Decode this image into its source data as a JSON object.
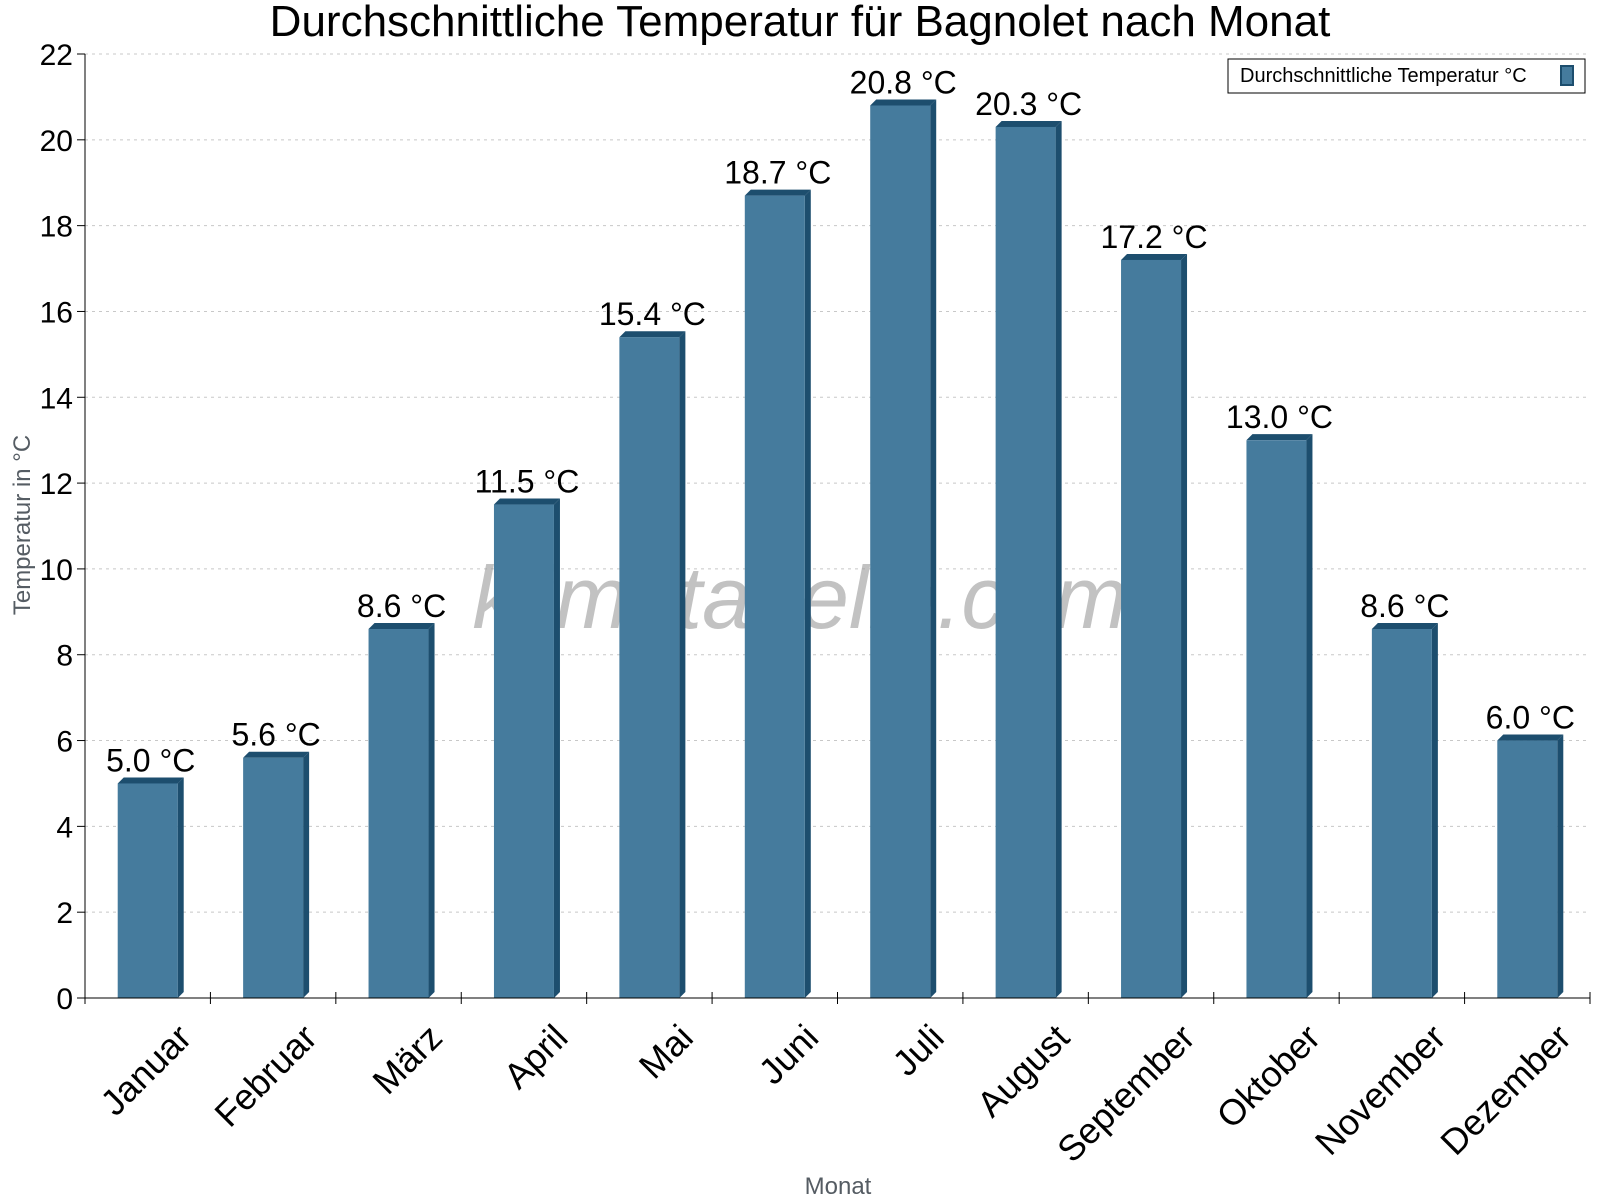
{
  "chart_data": {
    "type": "bar",
    "title": "Durchschnittliche Temperatur für Bagnolet nach Monat",
    "xlabel": "Monat",
    "ylabel": "Temperatur in °C",
    "categories": [
      "Januar",
      "Februar",
      "März",
      "April",
      "Mai",
      "Juni",
      "Juli",
      "August",
      "September",
      "Oktober",
      "November",
      "Dezember"
    ],
    "series": [
      {
        "name": "Durchschnittliche Temperatur °C",
        "values": [
          5.0,
          5.6,
          8.6,
          11.5,
          15.4,
          18.7,
          20.8,
          20.3,
          17.2,
          13.0,
          8.6,
          6.0
        ],
        "data_labels": [
          "5.0 °C",
          "5.6 °C",
          "8.6 °C",
          "11.5 °C",
          "15.4 °C",
          "18.7 °C",
          "20.8 °C",
          "20.3 °C",
          "17.2 °C",
          "13.0 °C",
          "8.6 °C",
          "6.0 °C"
        ],
        "color": "#457b9d",
        "edge_color": "#1d4e6e"
      }
    ],
    "ylim": [
      0,
      22
    ],
    "yticks": [
      0,
      2,
      4,
      6,
      8,
      10,
      12,
      14,
      16,
      18,
      20,
      22
    ],
    "grid": true,
    "legend_position": "top-right",
    "watermark": "klimatabelle.com"
  }
}
